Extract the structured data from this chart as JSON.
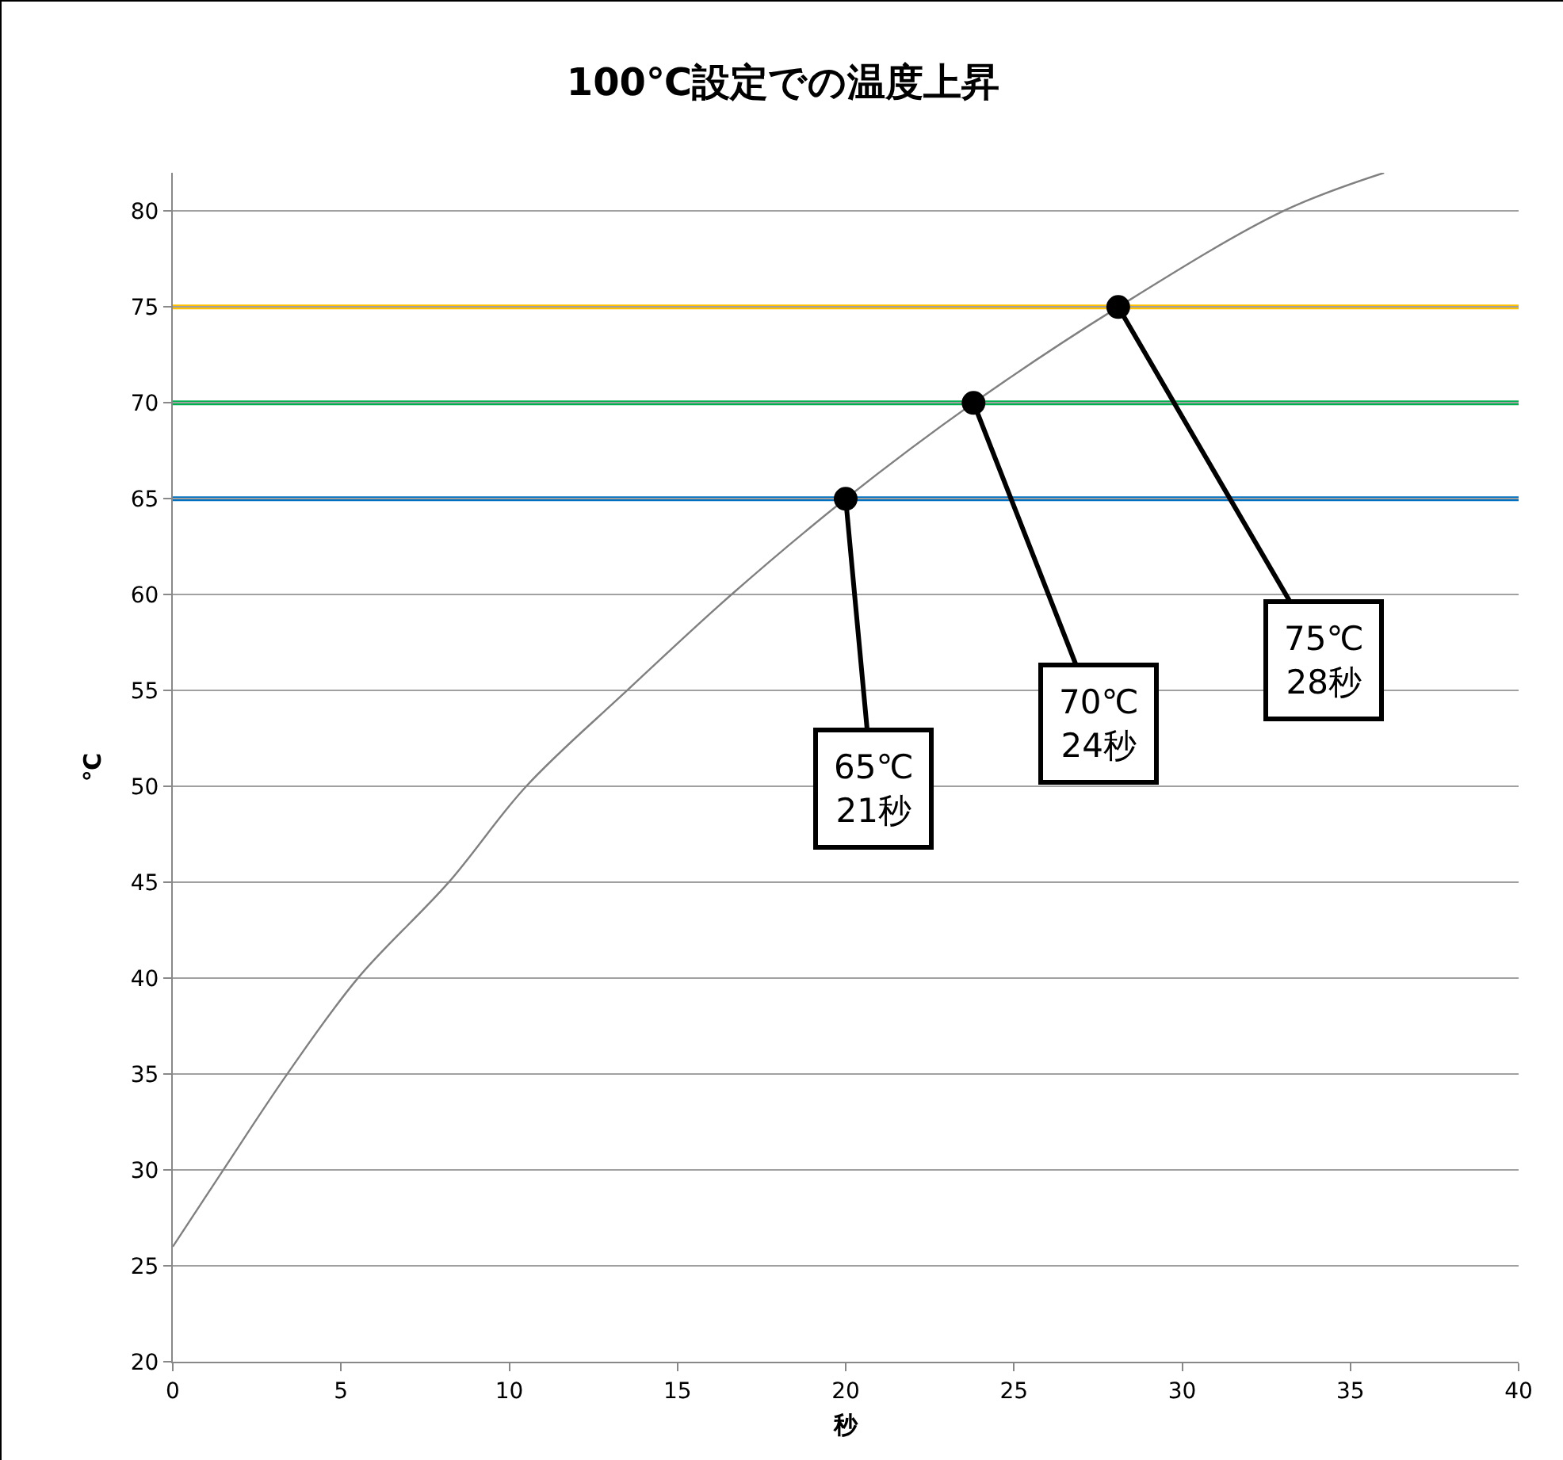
{
  "chart_data": {
    "type": "line",
    "title": "100℃設定での温度上昇",
    "xlabel": "秒",
    "ylabel": "℃",
    "xlim": [
      0,
      40
    ],
    "xticks": [
      0,
      5,
      10,
      15,
      20,
      25,
      30,
      35,
      40
    ],
    "ylim": [
      20,
      82
    ],
    "yticks": [
      20,
      25,
      30,
      35,
      40,
      45,
      50,
      55,
      60,
      65,
      70,
      75,
      80
    ],
    "grid": "y",
    "marker": "none",
    "line_style": "solid",
    "series": [
      {
        "color": "#808080",
        "x": [
          0,
          1.5,
          3.4,
          5.5,
          8.2,
          10.5,
          13.5,
          16.6,
          20,
          23.8,
          28.1,
          33,
          36
        ],
        "values": [
          26,
          30,
          35,
          40,
          45,
          50,
          55,
          60,
          65,
          70,
          75,
          80,
          82
        ]
      },
      {
        "type": "scatter",
        "marker": "circle",
        "color": "#000000",
        "x": [
          20,
          23.8,
          28.1
        ],
        "values": [
          65,
          70,
          75
        ]
      }
    ],
    "ref_lines": [
      {
        "axis": "y",
        "value": 65,
        "color": "#0070c0"
      },
      {
        "axis": "y",
        "value": 70,
        "color": "#00b050"
      },
      {
        "axis": "y",
        "value": 75,
        "color": "#ffc000"
      }
    ],
    "annotations": [
      {
        "text": "65℃\n21秒",
        "x": 20,
        "y": 65
      },
      {
        "text": "70℃\n24秒",
        "x": 23.8,
        "y": 70
      },
      {
        "text": "75℃\n28秒",
        "x": 28.1,
        "y": 75
      }
    ]
  }
}
